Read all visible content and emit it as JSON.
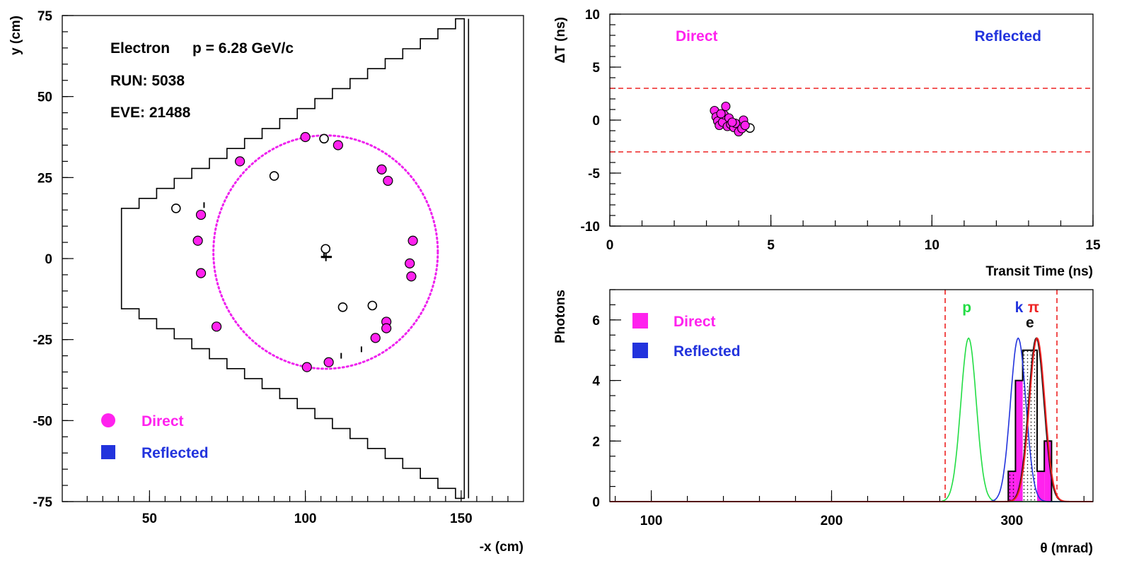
{
  "colors": {
    "direct": "#ff22ee",
    "reflected": "#2233dd",
    "limit_line": "#ee2222",
    "pion_label": "#ee2222",
    "proton_curve": "#22dd44",
    "kaon_curve": "#2233dd",
    "electron_curve": "#111111",
    "pion_curve": "#ee2222",
    "ring": "#ee22ee"
  },
  "chart_data": [
    {
      "type": "scatter",
      "xlabel": "-x (cm)",
      "ylabel": "y (cm)",
      "xlim": [
        22,
        170
      ],
      "ylim": [
        -75,
        75
      ],
      "xticks": [
        50,
        100,
        150
      ],
      "yticks": [
        75,
        50,
        25,
        0,
        -25,
        -50,
        -75
      ],
      "info": {
        "particle": "Electron",
        "momentum": "p = 6.28 GeV/c",
        "run": "RUN: 5038",
        "event": "EVE: 21488"
      },
      "legend": [
        {
          "label": "Direct",
          "marker": "circle",
          "color": "direct"
        },
        {
          "label": "Reflected",
          "marker": "square",
          "color": "reflected"
        }
      ],
      "ring": {
        "cx": 106.5,
        "cy": 2.0,
        "r": 36.0
      },
      "detector_outline": {
        "left_x": 41,
        "right_x": 151,
        "inner_half_height": 15.5,
        "outer_half_height": 74
      },
      "hits_direct": [
        [
          100,
          37.5
        ],
        [
          110.5,
          35
        ],
        [
          79,
          30
        ],
        [
          124.5,
          27.5
        ],
        [
          126.5,
          24
        ],
        [
          66.5,
          13.5
        ],
        [
          65.5,
          5.5
        ],
        [
          134.5,
          5.5
        ],
        [
          133.5,
          -1.5
        ],
        [
          134,
          -5.5
        ],
        [
          66.5,
          -4.5
        ],
        [
          126,
          -19.5
        ],
        [
          126,
          -21.5
        ],
        [
          71.5,
          -21
        ],
        [
          122.5,
          -24.5
        ],
        [
          100.5,
          -33.5
        ],
        [
          107.5,
          -32
        ]
      ],
      "hits_hollow": [
        [
          106,
          37
        ],
        [
          90,
          25.5
        ],
        [
          58.5,
          15.5
        ],
        [
          106.5,
          3
        ],
        [
          112,
          -15
        ],
        [
          121.5,
          -14.5
        ]
      ],
      "track_marks": [
        [
          106,
          1
        ],
        [
          67.5,
          16.5
        ],
        [
          118,
          -28
        ],
        [
          111.5,
          -30
        ]
      ]
    },
    {
      "type": "scatter",
      "xlabel": "Transit Time (ns)",
      "ylabel": "ΔT (ns)",
      "xlim": [
        0,
        15
      ],
      "ylim": [
        -10,
        10
      ],
      "xticks": [
        0,
        5,
        10,
        15
      ],
      "yticks": [
        10,
        5,
        0,
        -5,
        -10
      ],
      "labels": {
        "direct": "Direct",
        "reflected": "Reflected"
      },
      "cut_lines_y": [
        3,
        -3
      ],
      "points_direct": [
        [
          3.25,
          0.9
        ],
        [
          3.3,
          0.3
        ],
        [
          3.35,
          -0.1
        ],
        [
          3.4,
          -0.5
        ],
        [
          3.5,
          -0.2
        ],
        [
          3.55,
          0.5
        ],
        [
          3.6,
          1.3
        ],
        [
          3.65,
          -0.6
        ],
        [
          3.7,
          0.2
        ],
        [
          3.75,
          -0.4
        ],
        [
          3.85,
          -0.7
        ],
        [
          3.9,
          -0.3
        ],
        [
          4.0,
          -1.1
        ],
        [
          4.1,
          -0.8
        ],
        [
          4.15,
          0.0
        ],
        [
          4.2,
          -0.5
        ],
        [
          3.45,
          0.6
        ],
        [
          3.8,
          -0.2
        ]
      ],
      "points_hollow": [
        [
          4.35,
          -0.75
        ]
      ]
    },
    {
      "type": "histogram",
      "xlabel": "θ (mrad)",
      "ylabel": "Photons",
      "xlim": [
        77,
        345
      ],
      "ylim": [
        0,
        7
      ],
      "xticks": [
        100,
        200,
        300
      ],
      "yticks": [
        0,
        2,
        4,
        6
      ],
      "legend": [
        {
          "label": "Direct",
          "marker": "square",
          "color": "direct"
        },
        {
          "label": "Reflected",
          "marker": "square",
          "color": "reflected"
        }
      ],
      "cut_lines_x": [
        263,
        325
      ],
      "particle_labels": [
        {
          "text": "p",
          "x": 275,
          "y": 6.25,
          "color": "proton_curve"
        },
        {
          "text": "k",
          "x": 304,
          "y": 6.25,
          "color": "kaon_curve"
        },
        {
          "text": "π",
          "x": 312,
          "y": 6.25,
          "color": "pion_label"
        },
        {
          "text": "e",
          "x": 310,
          "y": 5.75,
          "color": "electron_curve"
        }
      ],
      "bin_edges": [
        298,
        302,
        306,
        310,
        314,
        318,
        322
      ],
      "direct_counts": [
        1,
        4,
        5,
        5,
        1,
        2
      ],
      "total_counts": [
        1,
        4,
        5,
        5,
        1,
        2
      ],
      "gaussians": [
        {
          "name": "p",
          "mean": 276,
          "sigma": 4.3,
          "amp": 5.4,
          "color": "proton_curve"
        },
        {
          "name": "k",
          "mean": 303.5,
          "sigma": 4.3,
          "amp": 5.4,
          "color": "kaon_curve"
        },
        {
          "name": "e",
          "mean": 313.5,
          "sigma": 4.3,
          "amp": 5.4,
          "color": "electron_curve"
        },
        {
          "name": "π",
          "mean": 314,
          "sigma": 4.3,
          "amp": 5.4,
          "color": "pion_curve"
        }
      ]
    }
  ]
}
